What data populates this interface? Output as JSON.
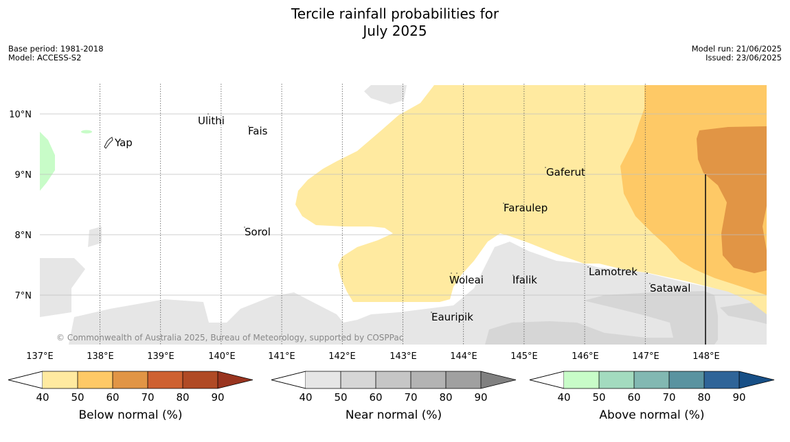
{
  "title_line1": "Tercile rainfall probabilities for",
  "title_line2": "July 2025",
  "base_period": "Base period: 1981-2018",
  "model": "Model: ACCESS-S2",
  "model_run": "Model run: 21/06/2025",
  "issued": "Issued: 23/06/2025",
  "copyright": "© Commonwealth of Australia 2025, Bureau of Meteorology, supported by COSPPac",
  "lon_ticks": [
    "137°E",
    "138°E",
    "139°E",
    "140°E",
    "141°E",
    "142°E",
    "143°E",
    "144°E",
    "145°E",
    "146°E",
    "147°E",
    "148°E"
  ],
  "lat_ticks": [
    "10°N",
    "9°N",
    "8°N",
    "7°N"
  ],
  "places": [
    {
      "name": "Ulithi"
    },
    {
      "name": "Fais"
    },
    {
      "name": "Yap"
    },
    {
      "name": "Gaferut"
    },
    {
      "name": "Faraulep"
    },
    {
      "name": "Sorol"
    },
    {
      "name": "Lamotrek"
    },
    {
      "name": "Satawal"
    },
    {
      "name": "Woleai"
    },
    {
      "name": "Ifalik"
    },
    {
      "name": "Eauripik"
    }
  ],
  "colorbars": [
    {
      "label": "Below normal (%)",
      "ticks": [
        "40",
        "50",
        "60",
        "70",
        "80",
        "90"
      ],
      "colors": [
        "#ffeaa0",
        "#fec966",
        "#e19545",
        "#ce6131",
        "#b04a25",
        "#99341f"
      ]
    },
    {
      "label": "Near normal (%)",
      "ticks": [
        "40",
        "50",
        "60",
        "70",
        "80",
        "90"
      ],
      "colors": [
        "#e6e6e6",
        "#d6d6d6",
        "#c6c6c6",
        "#b3b3b3",
        "#a0a0a0",
        "#808080"
      ]
    },
    {
      "label": "Above normal (%)",
      "ticks": [
        "40",
        "50",
        "60",
        "70",
        "80",
        "90"
      ],
      "colors": [
        "#c8fcc8",
        "#a3dbbf",
        "#82b8b2",
        "#5a93a0",
        "#2f6498",
        "#174f86"
      ]
    }
  ]
}
